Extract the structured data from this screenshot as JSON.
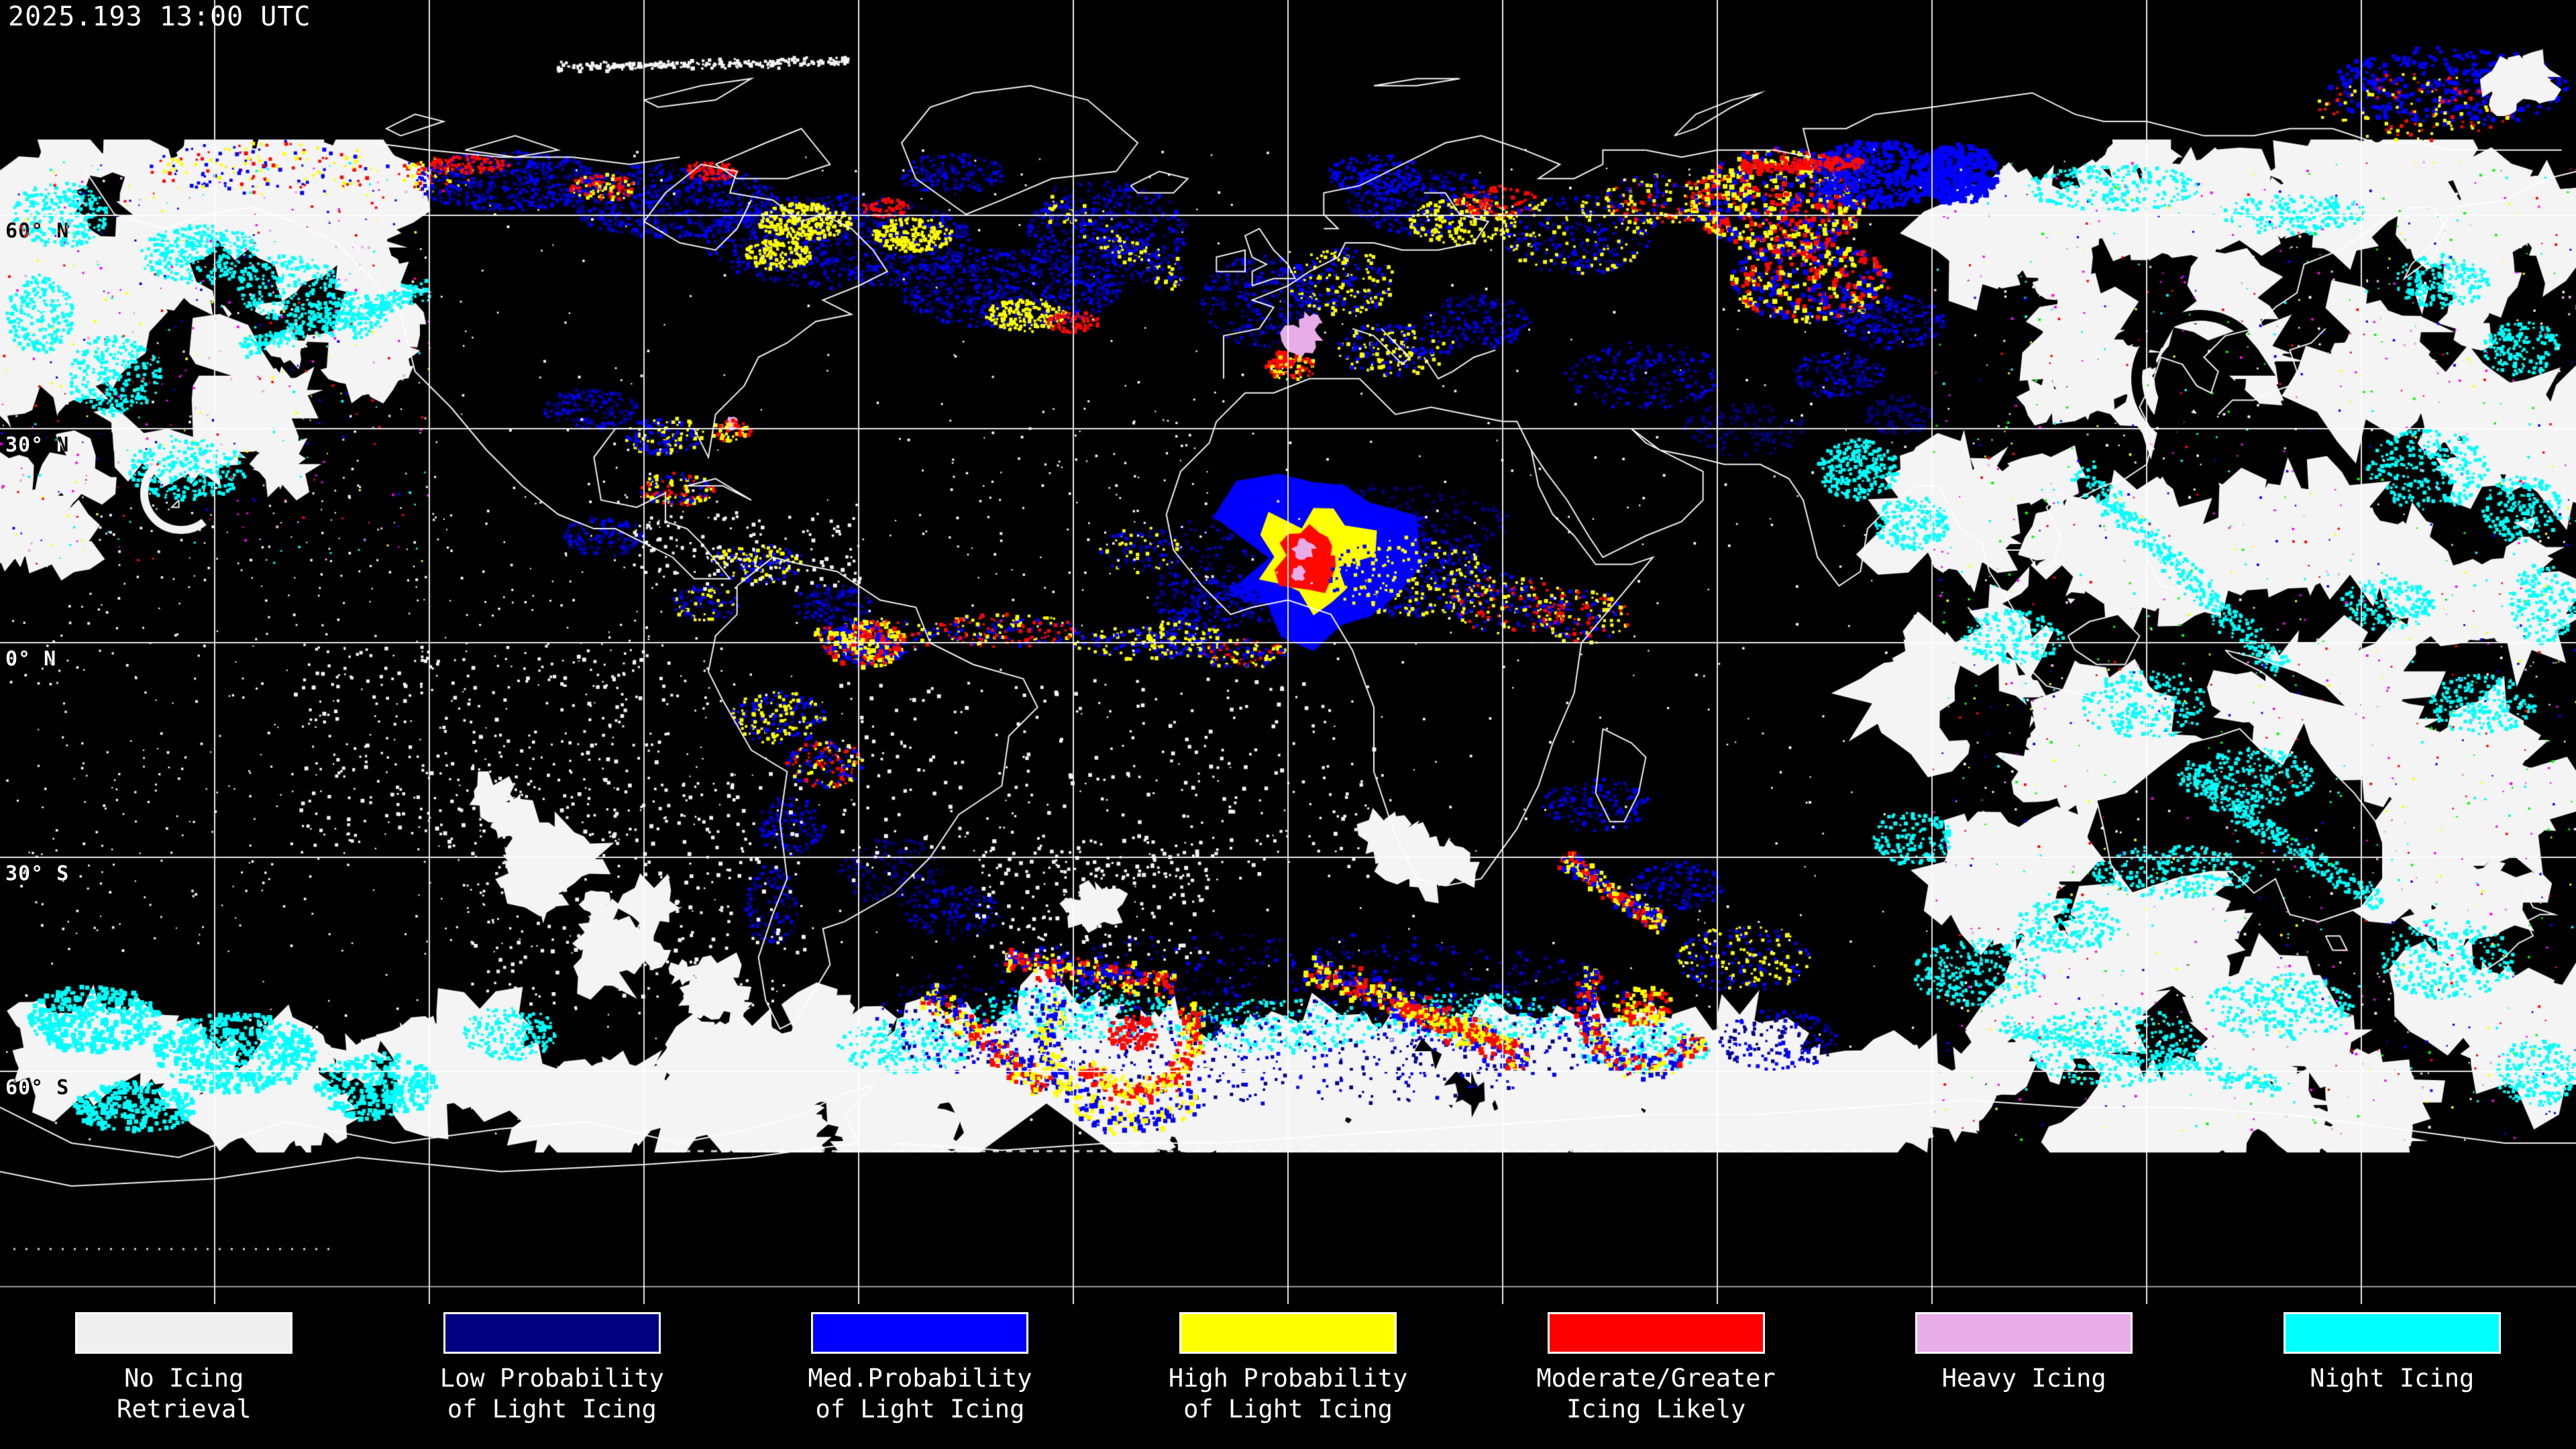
{
  "header": {
    "timestamp": "2025.193 13:00 UTC"
  },
  "map": {
    "latitude_labels": [
      {
        "text": "60° N"
      },
      {
        "text": "30° N"
      },
      {
        "text": "0° N"
      },
      {
        "text": "30° S"
      },
      {
        "text": "60° S"
      }
    ],
    "grid": {
      "lon_step_deg": 30,
      "lat_step_deg": 30,
      "line_color": "#ffffff"
    },
    "palette": {
      "background": "#000000",
      "cloud": "#f4f4f4",
      "coastline": "#ffffff",
      "no_icing": "#efefef",
      "low_probability": "#000085",
      "medium_probability": "#0000ff",
      "high_probability": "#ffff00",
      "moderate_or_greater": "#ff0800",
      "heavy": "#e8ace8",
      "night_icing": "#00ffff"
    }
  },
  "legend": {
    "items": [
      {
        "name": "no-icing-retrieval",
        "color": "#efefef",
        "lines": [
          "No Icing",
          "Retrieval"
        ]
      },
      {
        "name": "low-probability",
        "color": "#000080",
        "lines": [
          "Low Probability",
          "of Light Icing"
        ]
      },
      {
        "name": "medium-probability",
        "color": "#0000ff",
        "lines": [
          "Med.Probability",
          "of Light Icing"
        ]
      },
      {
        "name": "high-probability",
        "color": "#ffff00",
        "lines": [
          "High Probability",
          "of Light Icing"
        ]
      },
      {
        "name": "moderate-greater",
        "color": "#ff0000",
        "lines": [
          "Moderate/Greater",
          "Icing Likely"
        ]
      },
      {
        "name": "heavy-icing",
        "color": "#e8ace8",
        "lines": [
          "Heavy Icing"
        ]
      },
      {
        "name": "night-icing",
        "color": "#00ffff",
        "lines": [
          "Night Icing"
        ]
      }
    ]
  }
}
